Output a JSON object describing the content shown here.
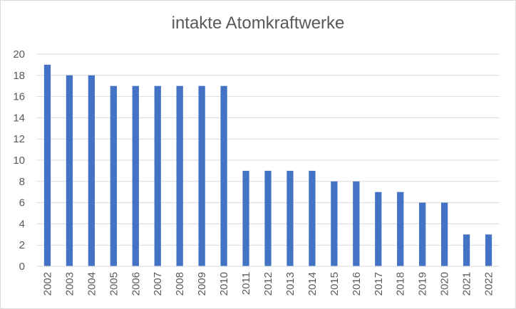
{
  "chart_data": {
    "type": "bar",
    "title": "intakte Atomkraftwerke",
    "categories": [
      "2002",
      "2003",
      "2004",
      "2005",
      "2006",
      "2007",
      "2008",
      "2009",
      "2010",
      "2011",
      "2012",
      "2013",
      "2014",
      "2015",
      "2016",
      "2017",
      "2018",
      "2019",
      "2020",
      "2021",
      "2022"
    ],
    "values": [
      19,
      18,
      18,
      17,
      17,
      17,
      17,
      17,
      17,
      9,
      9,
      9,
      9,
      8,
      8,
      7,
      7,
      6,
      6,
      3,
      3
    ],
    "ylim": [
      0,
      20
    ],
    "yticks": [
      0,
      2,
      4,
      6,
      8,
      10,
      12,
      14,
      16,
      18,
      20
    ],
    "grid": true,
    "bar_color": "#4472c4",
    "grid_color": "#d9d9d9",
    "legend": "none"
  }
}
